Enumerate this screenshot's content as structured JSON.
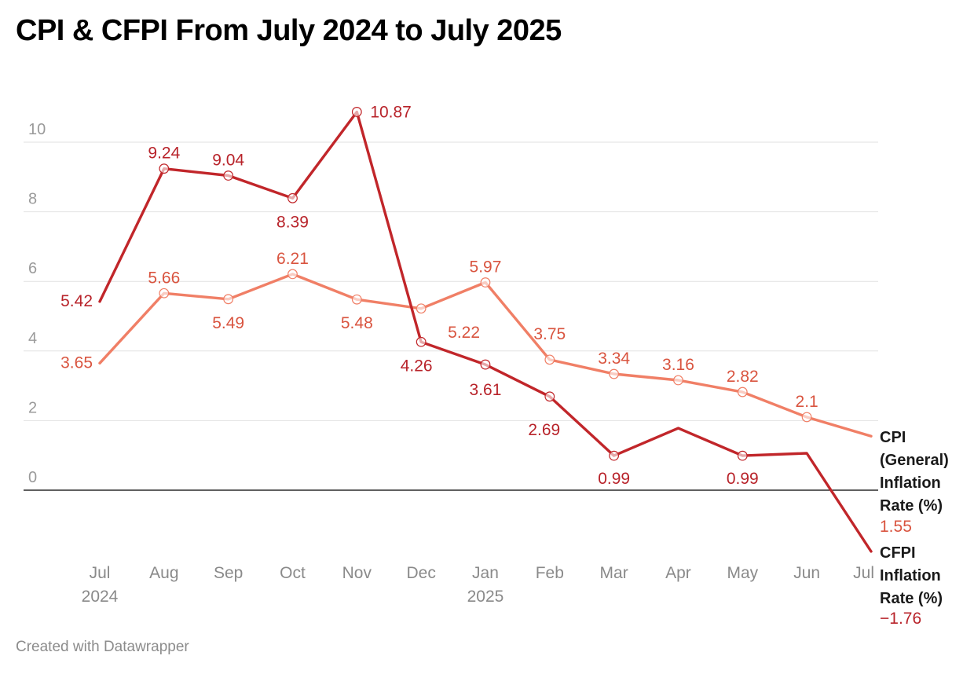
{
  "title": "CPI & CFPI From July 2024 to July 2025",
  "footer": "Created with Datawrapper",
  "colors": {
    "cpi": "#f07f66",
    "cfpi": "#c1262a",
    "cpi_text": "#d9543f",
    "cfpi_text": "#b8232a",
    "grid": "#e2e2e2",
    "zero": "#000000"
  },
  "chart_data": {
    "type": "line",
    "title": "CPI & CFPI From July 2024 to July 2025",
    "xlabel": "",
    "ylabel": "",
    "ylim": [
      -2,
      11
    ],
    "yticks": [
      "0",
      "2",
      "4",
      "6",
      "8",
      "10"
    ],
    "categories": [
      {
        "label": "Jul",
        "sub": "2024"
      },
      {
        "label": "Aug",
        "sub": ""
      },
      {
        "label": "Sep",
        "sub": ""
      },
      {
        "label": "Oct",
        "sub": ""
      },
      {
        "label": "Nov",
        "sub": ""
      },
      {
        "label": "Dec",
        "sub": ""
      },
      {
        "label": "Jan",
        "sub": "2025"
      },
      {
        "label": "Feb",
        "sub": ""
      },
      {
        "label": "Mar",
        "sub": ""
      },
      {
        "label": "Apr",
        "sub": ""
      },
      {
        "label": "May",
        "sub": ""
      },
      {
        "label": "Jun",
        "sub": ""
      },
      {
        "label": "Jul",
        "sub": ""
      }
    ],
    "series": [
      {
        "key": "cpi",
        "name_lines": [
          "CPI",
          "(General)",
          "Inflation",
          "Rate (%)"
        ],
        "end_value": "1.55",
        "values": [
          3.65,
          5.66,
          5.49,
          6.21,
          5.48,
          5.22,
          5.97,
          3.75,
          3.34,
          3.16,
          2.82,
          2.1,
          1.55
        ],
        "labels": [
          "3.65",
          "5.66",
          "5.49",
          "6.21",
          "5.48",
          "5.22",
          "5.97",
          "3.75",
          "3.34",
          "3.16",
          "2.82",
          "2.1",
          null
        ],
        "markers": [
          false,
          true,
          true,
          true,
          true,
          true,
          true,
          true,
          true,
          true,
          true,
          true,
          false
        ]
      },
      {
        "key": "cfpi",
        "name_lines": [
          "CFPI",
          "Inflation",
          "Rate (%)"
        ],
        "end_value": "−1.76",
        "values": [
          5.42,
          9.24,
          9.04,
          8.39,
          10.87,
          4.26,
          3.61,
          2.69,
          0.99,
          1.78,
          0.99,
          1.06,
          -1.76
        ],
        "labels": [
          "5.42",
          "9.24",
          "9.04",
          "8.39",
          "10.87",
          "4.26",
          "3.61",
          "2.69",
          "0.99",
          null,
          "0.99",
          null,
          null
        ],
        "markers": [
          false,
          true,
          true,
          true,
          true,
          true,
          true,
          true,
          true,
          false,
          true,
          false,
          false
        ]
      }
    ]
  }
}
